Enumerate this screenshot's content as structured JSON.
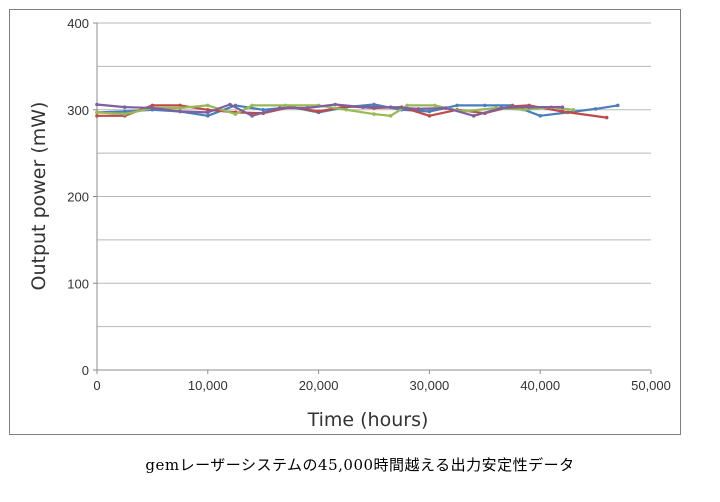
{
  "chart_data": {
    "type": "line",
    "xlabel": "Time (hours)",
    "ylabel": "Output power (mW)",
    "xlim": [
      0,
      50000
    ],
    "ylim": [
      0,
      400
    ],
    "x_ticks": [
      0,
      10000,
      20000,
      30000,
      40000,
      50000
    ],
    "x_tick_labels": [
      "0",
      "10,000",
      "20,000",
      "30,000",
      "40,000",
      "50,000"
    ],
    "y_ticks": [
      0,
      100,
      200,
      300,
      400
    ],
    "y_tick_labels": [
      "0",
      "100",
      "200",
      "300",
      "400"
    ],
    "grid": "horizontal",
    "legend": "none",
    "series": [
      {
        "color": "#4a7ebb",
        "x": [
          0,
          2500,
          5000,
          7500,
          10000,
          12500,
          15000,
          17500,
          20000,
          22500,
          25000,
          27500,
          30000,
          32500,
          35000,
          37500,
          40000,
          42500,
          45000,
          47000
        ],
        "y": [
          297,
          298,
          300,
          298,
          293,
          305,
          300,
          303,
          297,
          303,
          306,
          300,
          298,
          305,
          305,
          305,
          293,
          297,
          301,
          305
        ]
      },
      {
        "color": "#be4b48",
        "x": [
          0,
          2500,
          5000,
          7500,
          10000,
          12500,
          15000,
          17500,
          20000,
          22500,
          25000,
          27500,
          30000,
          32500,
          35000,
          37500,
          39000,
          42000,
          46000
        ],
        "y": [
          293,
          293,
          305,
          305,
          300,
          297,
          296,
          303,
          298,
          304,
          302,
          303,
          293,
          300,
          296,
          304,
          305,
          298,
          291
        ]
      },
      {
        "color": "#98b954",
        "x": [
          0,
          2500,
          5000,
          7500,
          10000,
          12500,
          14000,
          17000,
          20000,
          22500,
          25000,
          26500,
          28000,
          30500,
          33000,
          36000,
          38500,
          41000,
          43000
        ],
        "y": [
          297,
          295,
          302,
          302,
          305,
          295,
          305,
          305,
          305,
          300,
          295,
          293,
          305,
          305,
          298,
          302,
          300,
          303,
          300
        ]
      },
      {
        "color": "#7d60a0",
        "x": [
          0,
          2500,
          5000,
          7500,
          10000,
          12000,
          14000,
          16500,
          19000,
          21500,
          24000,
          26500,
          29000,
          31500,
          34000,
          36500,
          39000,
          42000
        ],
        "y": [
          306,
          303,
          302,
          298,
          297,
          306,
          293,
          302,
          302,
          306,
          303,
          303,
          301,
          302,
          293,
          302,
          303,
          303
        ]
      }
    ]
  },
  "caption": "gemレーザーシステムの45,000時間越える出力安定性データ"
}
